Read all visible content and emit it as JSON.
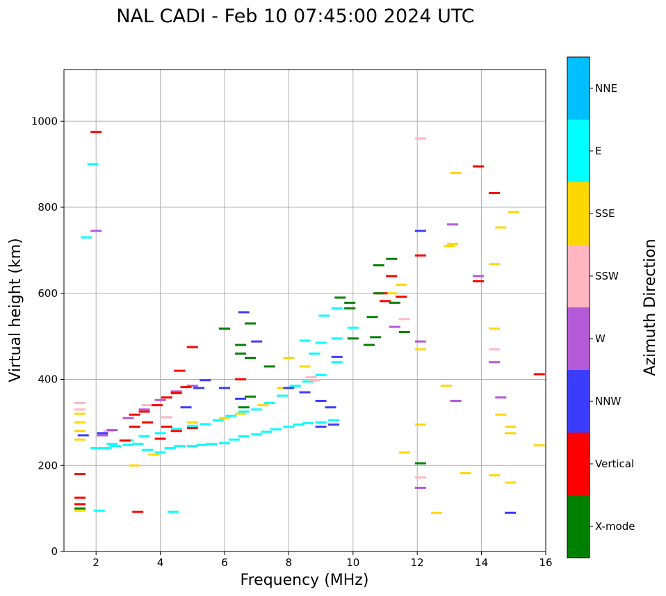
{
  "chart_data": {
    "type": "scatter",
    "title": "NAL CADI - Feb 10 07:45:00 2024 UTC",
    "xlabel": "Frequency (MHz)",
    "ylabel": "Virtual height (km)",
    "xlim": [
      1,
      16
    ],
    "ylim": [
      0,
      1120
    ],
    "xticks": [
      2,
      4,
      6,
      8,
      10,
      12,
      14,
      16
    ],
    "yticks": [
      0,
      200,
      400,
      600,
      800,
      1000
    ],
    "grid": true,
    "colorbar": {
      "label": "Azimuth Direction",
      "categories": [
        {
          "name": "NNE",
          "color": "#00bfff"
        },
        {
          "name": "E",
          "color": "#00ffff"
        },
        {
          "name": "SSE",
          "color": "#ffd700"
        },
        {
          "name": "SSW",
          "color": "#ffb6c1"
        },
        {
          "name": "W",
          "color": "#b45ad8"
        },
        {
          "name": "NNW",
          "color": "#3c3cff"
        },
        {
          "name": "Vertical",
          "color": "#ff0000"
        },
        {
          "name": "X-mode",
          "color": "#008000"
        }
      ]
    },
    "series": [
      {
        "name": "E",
        "points": [
          [
            2.0,
            240
          ],
          [
            2.3,
            240
          ],
          [
            2.6,
            245
          ],
          [
            3.0,
            248
          ],
          [
            3.3,
            250
          ],
          [
            3.6,
            236
          ],
          [
            4.0,
            230
          ],
          [
            4.3,
            240
          ],
          [
            4.6,
            245
          ],
          [
            5.0,
            245
          ],
          [
            5.3,
            248
          ],
          [
            5.6,
            250
          ],
          [
            6.0,
            252
          ],
          [
            6.3,
            260
          ],
          [
            6.6,
            268
          ],
          [
            7.0,
            272
          ],
          [
            7.3,
            278
          ],
          [
            7.6,
            284
          ],
          [
            8.0,
            290
          ],
          [
            8.3,
            295
          ],
          [
            8.6,
            298
          ],
          [
            9.0,
            300
          ],
          [
            9.4,
            305
          ],
          [
            2.5,
            250
          ],
          [
            3.0,
            258
          ],
          [
            3.5,
            268
          ],
          [
            4.0,
            275
          ],
          [
            4.5,
            285
          ],
          [
            5.0,
            292
          ],
          [
            5.4,
            296
          ],
          [
            5.8,
            305
          ],
          [
            6.2,
            315
          ],
          [
            6.6,
            325
          ],
          [
            7.0,
            330
          ],
          [
            7.4,
            345
          ],
          [
            7.8,
            362
          ],
          [
            8.2,
            385
          ],
          [
            8.6,
            395
          ],
          [
            9.0,
            410
          ],
          [
            9.5,
            440
          ],
          [
            8.5,
            490
          ],
          [
            9.0,
            485
          ],
          [
            9.5,
            495
          ],
          [
            10.0,
            520
          ],
          [
            1.7,
            730
          ],
          [
            1.9,
            900
          ],
          [
            2.1,
            95
          ],
          [
            4.4,
            92
          ],
          [
            9.1,
            548
          ],
          [
            9.5,
            565
          ],
          [
            8.8,
            460
          ]
        ]
      },
      {
        "name": "SSE",
        "points": [
          [
            1.5,
            300
          ],
          [
            1.5,
            280
          ],
          [
            1.5,
            260
          ],
          [
            1.5,
            320
          ],
          [
            1.5,
            110
          ],
          [
            1.5,
            95
          ],
          [
            3.2,
            200
          ],
          [
            3.8,
            225
          ],
          [
            5.0,
            300
          ],
          [
            6.0,
            310
          ],
          [
            6.5,
            320
          ],
          [
            7.2,
            340
          ],
          [
            7.8,
            380
          ],
          [
            8.0,
            450
          ],
          [
            8.5,
            430
          ],
          [
            12.1,
            470
          ],
          [
            12.1,
            295
          ],
          [
            12.6,
            90
          ],
          [
            12.9,
            385
          ],
          [
            13.2,
            880
          ],
          [
            13.1,
            715
          ],
          [
            13.0,
            710
          ],
          [
            13.5,
            182
          ],
          [
            14.4,
            668
          ],
          [
            14.4,
            518
          ],
          [
            14.4,
            177
          ],
          [
            14.6,
            753
          ],
          [
            14.6,
            318
          ],
          [
            14.9,
            290
          ],
          [
            14.9,
            275
          ],
          [
            14.9,
            160
          ],
          [
            15.0,
            789
          ],
          [
            15.8,
            247
          ],
          [
            11.6,
            230
          ],
          [
            11.2,
            600
          ],
          [
            11.5,
            620
          ]
        ]
      },
      {
        "name": "SSW",
        "points": [
          [
            1.5,
            345
          ],
          [
            1.5,
            330
          ],
          [
            2.4,
            280
          ],
          [
            3.6,
            340
          ],
          [
            4.2,
            312
          ],
          [
            8.7,
            405
          ],
          [
            8.8,
            398
          ],
          [
            12.1,
            960
          ],
          [
            12.1,
            172
          ],
          [
            14.4,
            470
          ],
          [
            11.6,
            540
          ]
        ]
      },
      {
        "name": "W",
        "points": [
          [
            2.2,
            270
          ],
          [
            2.5,
            282
          ],
          [
            3.0,
            310
          ],
          [
            3.5,
            330
          ],
          [
            4.0,
            352
          ],
          [
            4.5,
            372
          ],
          [
            5.0,
            385
          ],
          [
            2.0,
            745
          ],
          [
            12.1,
            488
          ],
          [
            13.2,
            350
          ],
          [
            13.1,
            760
          ],
          [
            14.4,
            440
          ],
          [
            14.6,
            358
          ],
          [
            12.1,
            148
          ],
          [
            13.9,
            640
          ],
          [
            11.3,
            522
          ]
        ]
      },
      {
        "name": "NNW",
        "points": [
          [
            1.6,
            270
          ],
          [
            2.2,
            275
          ],
          [
            4.8,
            335
          ],
          [
            5.2,
            380
          ],
          [
            5.4,
            398
          ],
          [
            6.0,
            380
          ],
          [
            6.5,
            355
          ],
          [
            8.0,
            380
          ],
          [
            8.5,
            370
          ],
          [
            9.0,
            350
          ],
          [
            9.3,
            335
          ],
          [
            9.0,
            290
          ],
          [
            9.4,
            295
          ],
          [
            12.1,
            745
          ],
          [
            14.9,
            90
          ],
          [
            6.6,
            556
          ],
          [
            7.0,
            488
          ],
          [
            9.5,
            452
          ]
        ]
      },
      {
        "name": "Vertical",
        "points": [
          [
            1.5,
            125
          ],
          [
            1.5,
            110
          ],
          [
            1.5,
            180
          ],
          [
            2.9,
            258
          ],
          [
            3.2,
            290
          ],
          [
            3.6,
            300
          ],
          [
            4.0,
            262
          ],
          [
            4.2,
            290
          ],
          [
            4.5,
            280
          ],
          [
            5.0,
            287
          ],
          [
            3.2,
            318
          ],
          [
            3.5,
            325
          ],
          [
            3.9,
            340
          ],
          [
            4.2,
            358
          ],
          [
            4.5,
            368
          ],
          [
            4.8,
            382
          ],
          [
            4.6,
            420
          ],
          [
            5.0,
            475
          ],
          [
            6.5,
            400
          ],
          [
            11.0,
            582
          ],
          [
            10.9,
            600
          ],
          [
            11.2,
            640
          ],
          [
            13.9,
            628
          ],
          [
            13.9,
            895
          ],
          [
            14.4,
            833
          ],
          [
            12.1,
            688
          ],
          [
            15.8,
            412
          ],
          [
            11.5,
            592
          ],
          [
            3.3,
            92
          ],
          [
            2.0,
            975
          ]
        ]
      },
      {
        "name": "X-mode",
        "points": [
          [
            1.5,
            100
          ],
          [
            6.0,
            518
          ],
          [
            6.5,
            480
          ],
          [
            6.8,
            530
          ],
          [
            6.8,
            450
          ],
          [
            6.5,
            460
          ],
          [
            9.9,
            578
          ],
          [
            9.9,
            565
          ],
          [
            9.6,
            590
          ],
          [
            10.6,
            545
          ],
          [
            10.8,
            600
          ],
          [
            11.2,
            680
          ],
          [
            10.8,
            665
          ],
          [
            11.3,
            578
          ],
          [
            11.6,
            510
          ],
          [
            12.1,
            205
          ],
          [
            6.8,
            360
          ],
          [
            6.6,
            335
          ],
          [
            7.4,
            430
          ],
          [
            10.0,
            495
          ],
          [
            10.7,
            498
          ],
          [
            10.5,
            480
          ]
        ]
      }
    ]
  }
}
